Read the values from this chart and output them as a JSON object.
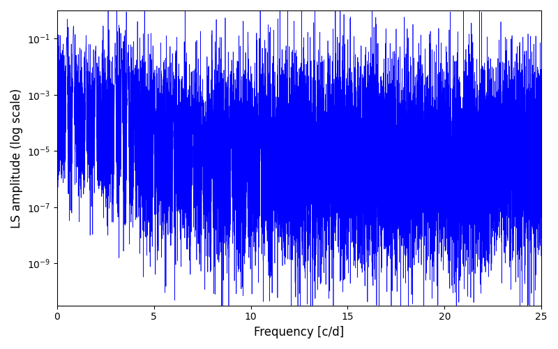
{
  "title": "",
  "xlabel": "Frequency [c/d]",
  "ylabel": "LS amplitude (log scale)",
  "line_color": "#0000ff",
  "line_width": 0.5,
  "xlim": [
    0,
    25
  ],
  "ylim_log": [
    -10.5,
    0
  ],
  "background_color": "#ffffff",
  "figsize": [
    8.0,
    5.0
  ],
  "dpi": 100,
  "seed": 7,
  "num_points": 15000
}
